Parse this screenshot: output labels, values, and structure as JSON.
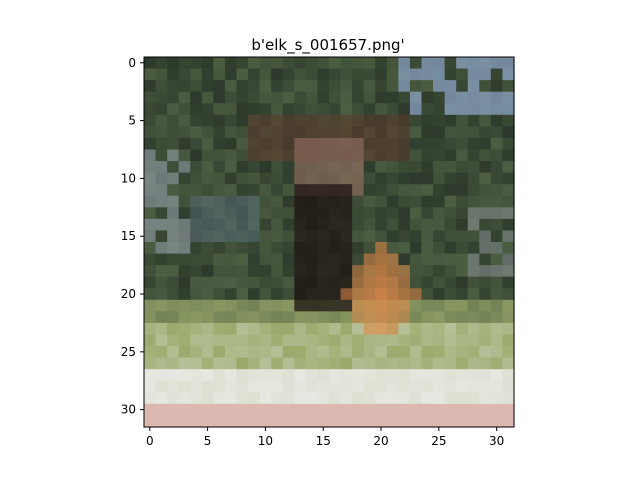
{
  "figure": {
    "title": "b'elk_s_001657.png'"
  },
  "image": {
    "description_name": "blurred-elk-photo",
    "grid_size": [
      32,
      32
    ],
    "palette": {
      "sky_blue": "#8ea6cc",
      "dark_foliage": "#2d3a2b",
      "mid_foliage": "#4c5e42",
      "elk_brown": "#5a3a2c",
      "elk_face": "#8a6a5c",
      "elk_dark": "#1e1512",
      "orange_leaves": "#e08a4a",
      "grass": "#9aa86a",
      "pale_grass": "#c8d0b4",
      "white_road": "#e8e8e2",
      "pink_ground": "#dcb8b0"
    }
  },
  "axes": {
    "x_ticks": [
      "0",
      "5",
      "10",
      "15",
      "20",
      "25",
      "30"
    ],
    "y_ticks": [
      "0",
      "5",
      "10",
      "15",
      "20",
      "25",
      "30"
    ]
  }
}
